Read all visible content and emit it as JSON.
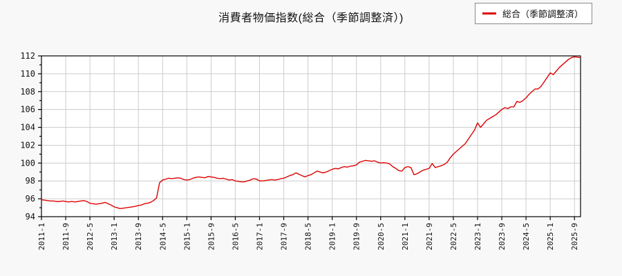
{
  "title": "消費者物価指数(総合（季節調整済）)",
  "legend": {
    "items": [
      {
        "label": "総合（季節調整済）",
        "color": "#dd0000"
      }
    ]
  },
  "colors": {
    "background": "#f8f8f8",
    "plot_background": "#ffffff",
    "grid": "#cccccc",
    "axis": "#000000",
    "series": "#dd0000",
    "legend_border": "#888888"
  },
  "chart_data": {
    "type": "line",
    "title": "消費者物価指数(総合（季節調整済）)",
    "series_name": "総合（季節調整済）",
    "frequency": "monthly",
    "x_start": "2011-1",
    "x_end": "2025-11",
    "ylim": [
      94,
      112
    ],
    "y_tick_step": 2,
    "y_minor_tick_step": 1,
    "grid": true,
    "legend_position": "top-right",
    "x_tick_every_n_months": 8,
    "x_tick_labels": [
      "2011-1",
      "2011-9",
      "2012-5",
      "2013-1",
      "2013-9",
      "2014-5",
      "2015-1",
      "2015-9",
      "2016-5",
      "2017-1",
      "2017-9",
      "2018-5",
      "2019-1",
      "2019-9",
      "2020-5",
      "2021-1",
      "2021-9",
      "2022-5",
      "2023-1",
      "2023-9",
      "2024-5",
      "2025-1",
      "2025-9"
    ],
    "values": [
      95.9,
      95.85,
      95.8,
      95.75,
      95.75,
      95.7,
      95.7,
      95.75,
      95.7,
      95.65,
      95.7,
      95.65,
      95.7,
      95.75,
      95.8,
      95.7,
      95.5,
      95.45,
      95.4,
      95.45,
      95.5,
      95.6,
      95.45,
      95.3,
      95.1,
      95.0,
      94.9,
      94.95,
      95.0,
      95.05,
      95.1,
      95.15,
      95.25,
      95.3,
      95.45,
      95.5,
      95.6,
      95.8,
      96.1,
      97.8,
      98.1,
      98.2,
      98.3,
      98.25,
      98.3,
      98.35,
      98.3,
      98.15,
      98.1,
      98.15,
      98.3,
      98.4,
      98.45,
      98.4,
      98.35,
      98.5,
      98.45,
      98.4,
      98.3,
      98.25,
      98.3,
      98.2,
      98.1,
      98.15,
      98.0,
      97.95,
      97.9,
      97.9,
      98.0,
      98.1,
      98.25,
      98.2,
      98.0,
      98.0,
      98.05,
      98.1,
      98.15,
      98.1,
      98.15,
      98.25,
      98.3,
      98.45,
      98.6,
      98.7,
      98.9,
      98.75,
      98.6,
      98.45,
      98.6,
      98.7,
      98.9,
      99.1,
      99.0,
      98.9,
      99.0,
      99.15,
      99.3,
      99.4,
      99.35,
      99.5,
      99.6,
      99.55,
      99.65,
      99.7,
      99.8,
      100.1,
      100.2,
      100.3,
      100.25,
      100.2,
      100.25,
      100.1,
      100.0,
      100.05,
      100.0,
      99.9,
      99.6,
      99.4,
      99.15,
      99.1,
      99.5,
      99.6,
      99.5,
      98.7,
      98.8,
      99.0,
      99.2,
      99.3,
      99.4,
      99.95,
      99.5,
      99.6,
      99.7,
      99.85,
      100.1,
      100.6,
      101.0,
      101.3,
      101.6,
      101.9,
      102.2,
      102.7,
      103.2,
      103.7,
      104.5,
      104.0,
      104.4,
      104.8,
      105.0,
      105.2,
      105.4,
      105.7,
      106.0,
      106.2,
      106.1,
      106.3,
      106.3,
      106.9,
      106.8,
      107.0,
      107.3,
      107.7,
      108.0,
      108.3,
      108.3,
      108.6,
      109.1,
      109.6,
      110.1,
      109.9,
      110.3,
      110.7,
      111.0,
      111.3,
      111.6,
      111.8,
      111.9,
      111.85,
      111.8
    ]
  }
}
